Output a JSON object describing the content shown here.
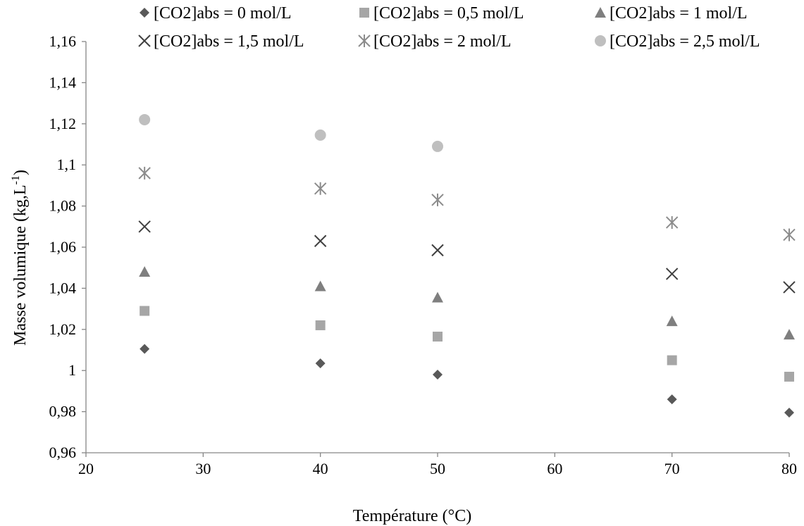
{
  "chart_data": {
    "type": "scatter",
    "xlabel": "Température (°C)",
    "ylabel": "Masse volumique  (kg,L",
    "ylabel_sup": "-1",
    "ylabel_close": ")",
    "xlim": [
      20,
      80
    ],
    "ylim": [
      0.96,
      1.16
    ],
    "x_ticks": [
      20,
      30,
      40,
      50,
      60,
      70,
      80
    ],
    "x_tick_labels": [
      "20",
      "30",
      "40",
      "50",
      "60",
      "70",
      "80"
    ],
    "y_ticks": [
      0.96,
      0.98,
      1.0,
      1.02,
      1.04,
      1.06,
      1.08,
      1.1,
      1.12,
      1.14,
      1.16
    ],
    "y_tick_labels": [
      "0,96",
      "0,98",
      "1",
      "1,02",
      "1,04",
      "1,06",
      "1,08",
      "1,1",
      "1,12",
      "1,14",
      "1,16"
    ],
    "grid": false,
    "legend_position": "top",
    "series": [
      {
        "name": "[CO2]abs = 0 mol/L",
        "marker": "diamond",
        "color": "#595959",
        "x": [
          25,
          40,
          50,
          70,
          80
        ],
        "y": [
          1.0105,
          1.0035,
          0.998,
          0.986,
          0.9795
        ]
      },
      {
        "name": "[CO2]abs = 0,5 mol/L",
        "marker": "square",
        "color": "#a6a6a6",
        "x": [
          25,
          40,
          50,
          70,
          80
        ],
        "y": [
          1.029,
          1.022,
          1.0165,
          1.005,
          0.997
        ]
      },
      {
        "name": "[CO2]abs = 1 mol/L",
        "marker": "triangle",
        "color": "#7f7f7f",
        "x": [
          25,
          40,
          50,
          70,
          80
        ],
        "y": [
          1.048,
          1.041,
          1.0355,
          1.024,
          1.0175
        ]
      },
      {
        "name": "[CO2]abs = 1,5 mol/L",
        "marker": "x",
        "color": "#404040",
        "x": [
          25,
          40,
          50,
          70,
          80
        ],
        "y": [
          1.07,
          1.063,
          1.0585,
          1.047,
          1.0405
        ]
      },
      {
        "name": "[CO2]abs = 2 mol/L",
        "marker": "star",
        "color": "#8c8c8c",
        "x": [
          25,
          40,
          50,
          70,
          80
        ],
        "y": [
          1.096,
          1.0885,
          1.083,
          1.072,
          1.066
        ]
      },
      {
        "name": "[CO2]abs = 2,5 mol/L",
        "marker": "circle",
        "color": "#bfbfbf",
        "x": [
          25,
          40,
          50
        ],
        "y": [
          1.122,
          1.1145,
          1.109
        ]
      }
    ]
  }
}
